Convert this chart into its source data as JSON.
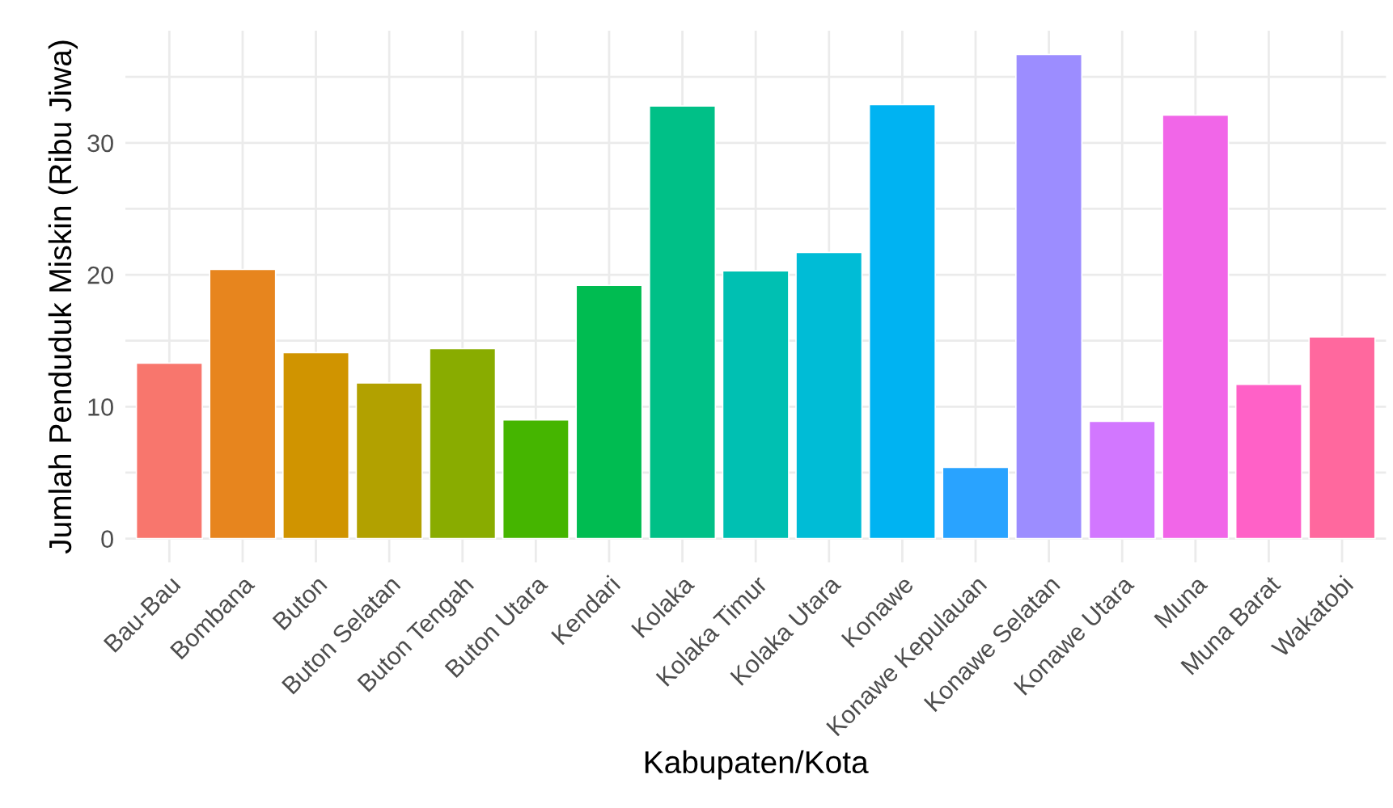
{
  "chart_data": {
    "type": "bar",
    "xlabel": "Kabupaten/Kota",
    "ylabel": "Jumlah Penduduk Miskin (Ribu Jiwa)",
    "categories": [
      "Bau-Bau",
      "Bombana",
      "Buton",
      "Buton Selatan",
      "Buton Tengah",
      "Buton Utara",
      "Kendari",
      "Kolaka",
      "Kolaka Timur",
      "Kolaka Utara",
      "Konawe",
      "Konawe Kepulauan",
      "Konawe Selatan",
      "Konawe Utara",
      "Muna",
      "Muna Barat",
      "Wakatobi"
    ],
    "values": [
      13.3,
      20.4,
      14.1,
      11.8,
      14.4,
      9.0,
      19.2,
      32.8,
      20.3,
      21.7,
      32.9,
      5.4,
      36.7,
      8.9,
      32.1,
      11.7,
      15.3
    ],
    "colors": [
      "#f8766d",
      "#e7851e",
      "#d09400",
      "#b2a100",
      "#89ac00",
      "#45b500",
      "#00bc51",
      "#00c087",
      "#00c0b2",
      "#00bcd6",
      "#00b3f2",
      "#29a3ff",
      "#9c8dff",
      "#d277ff",
      "#f166e8",
      "#ff61c7",
      "#ff689e"
    ],
    "ylim": [
      -1.8,
      38.5
    ],
    "yticks": [
      0,
      {
        "value": 5,
        "label": null
      },
      10,
      {
        "value": 15,
        "label": null
      },
      20,
      {
        "value": 25,
        "label": null
      },
      30,
      {
        "value": 35,
        "label": null
      }
    ],
    "grid": true,
    "legend": false
  }
}
